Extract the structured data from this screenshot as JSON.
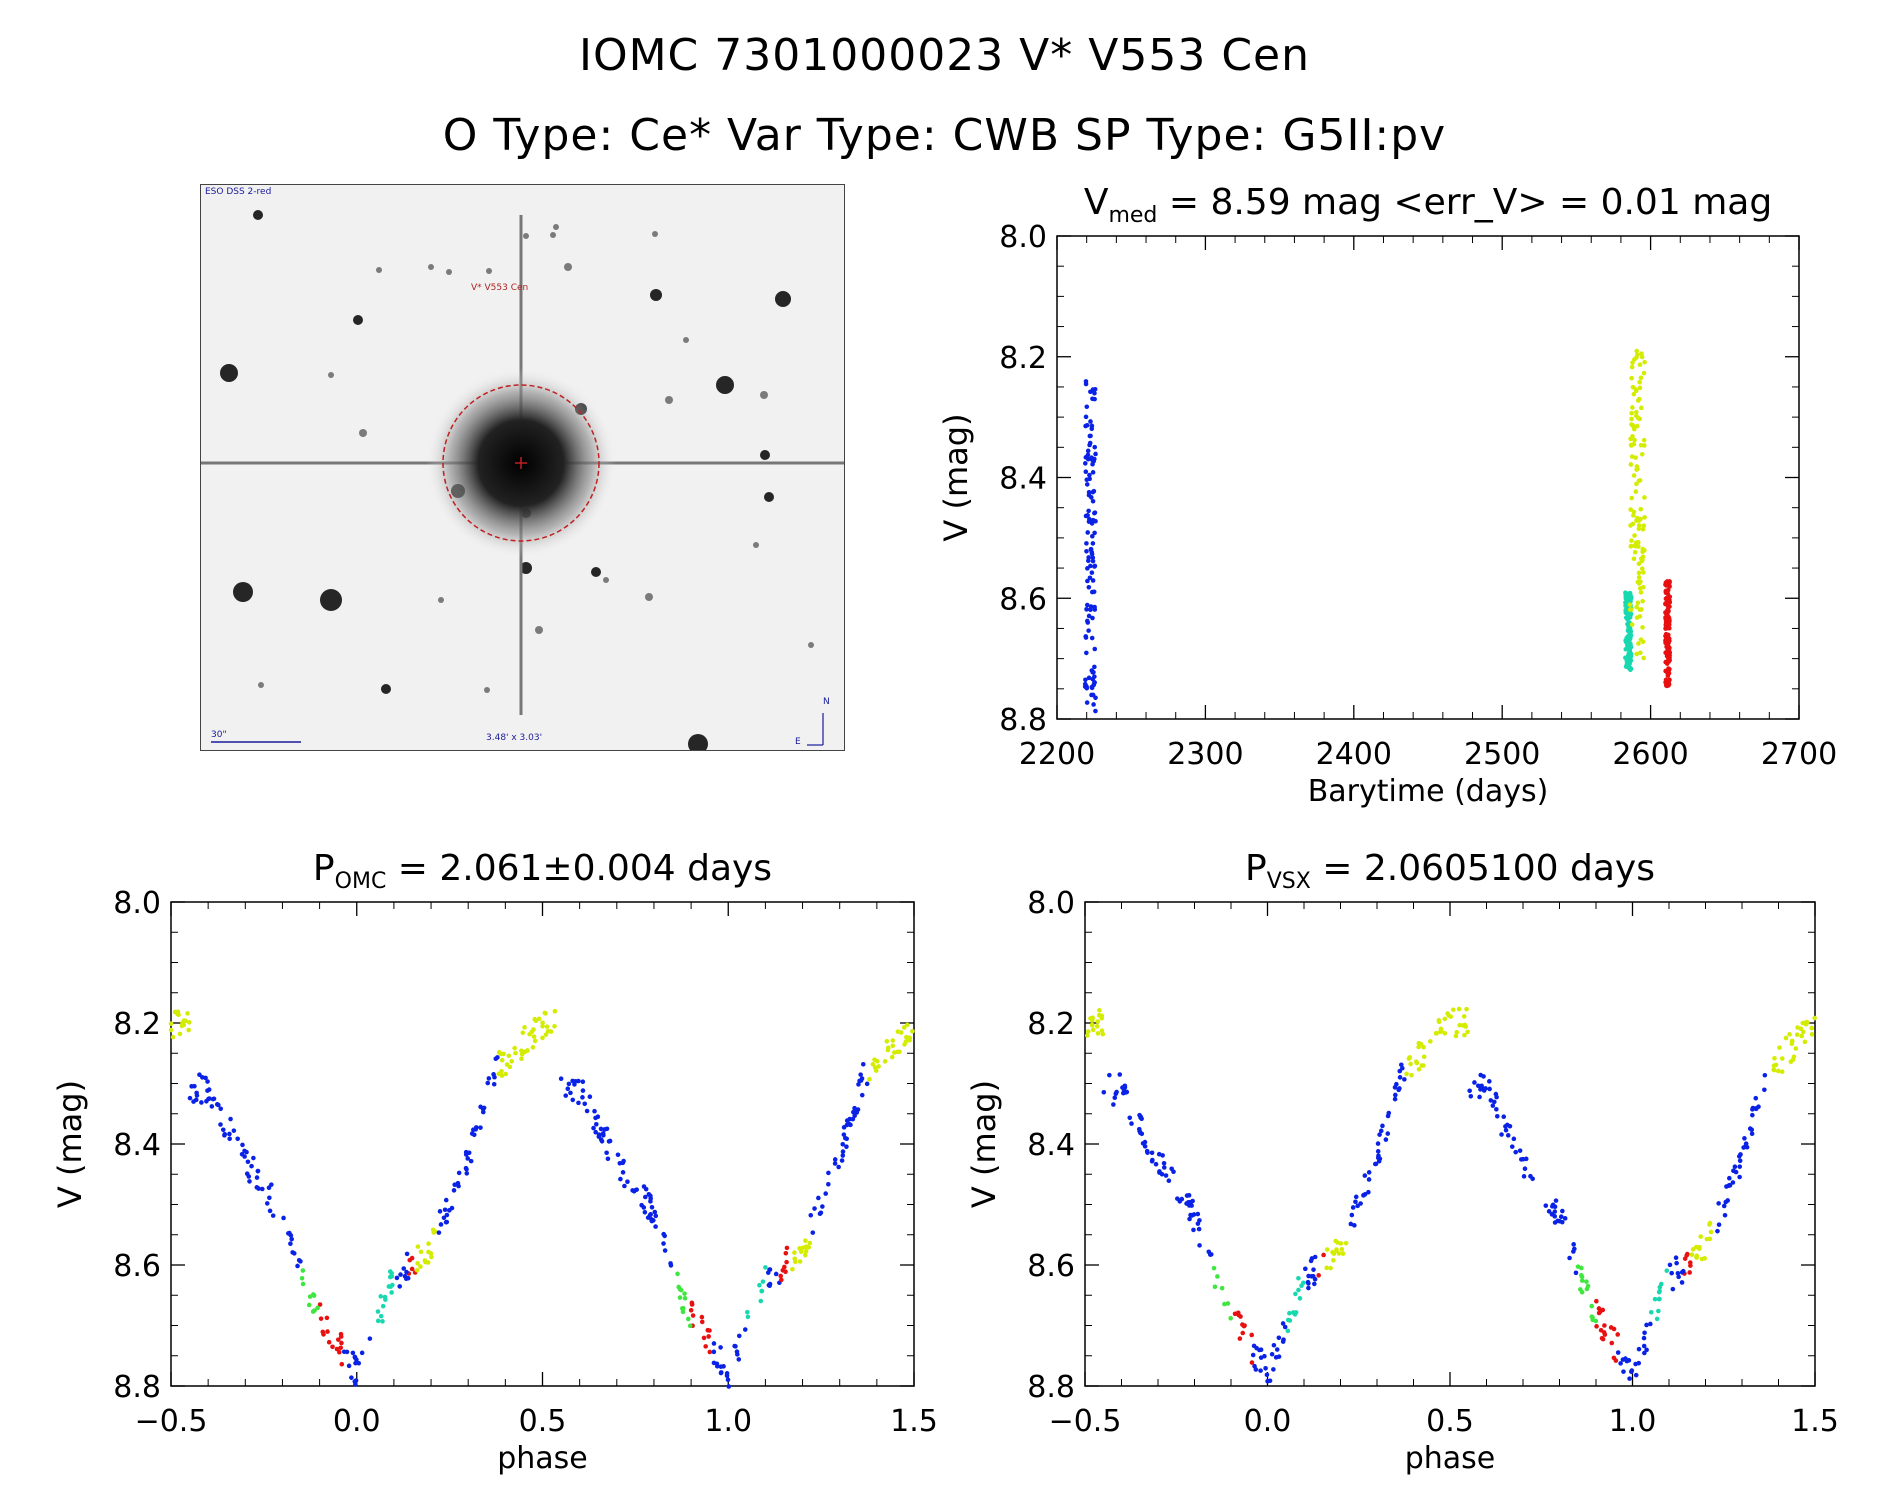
{
  "header": {
    "line1": "IOMC 7301000023   V* V553 Cen",
    "line2": "O Type: Ce*  Var Type: CWB  SP Type: G5II:pv"
  },
  "finding_chart": {
    "source_label": "ESO DSS 2-red",
    "target_label": "V* V553 Cen",
    "scale_label": "30\"",
    "size_label": "3.48' x 3.03'",
    "north": "N",
    "east": "E"
  },
  "colors": {
    "blue": "#0a22e6",
    "yellow": "#d4ec00",
    "red": "#e81010",
    "cyan": "#19d8b0",
    "green": "#40e640"
  },
  "chart_data": [
    {
      "type": "scatter",
      "id": "lightcurve",
      "title": "V_med = 8.59 mag <err_V> = 0.01 mag",
      "title_parts": {
        "main": "V",
        "sub": "med",
        "rest": " = 8.59 mag <err_V> = 0.01 mag"
      },
      "xlabel": "Barytime (days)",
      "ylabel": "V (mag)",
      "xlim": [
        2200,
        2700
      ],
      "ylim": [
        8.8,
        8.0
      ],
      "xticks": [
        "2200",
        "2300",
        "2400",
        "2500",
        "2600",
        "2700"
      ],
      "yticks": [
        "8.0",
        "8.2",
        "8.4",
        "8.6",
        "8.8"
      ],
      "series": [
        {
          "color": "blue",
          "x_range": [
            2219,
            2226
          ],
          "y_range": [
            8.24,
            8.79
          ]
        },
        {
          "color": "cyan",
          "x_range": [
            2583,
            2587
          ],
          "y_range": [
            8.59,
            8.72
          ]
        },
        {
          "color": "yellow",
          "x_range": [
            2586,
            2596
          ],
          "y_range": [
            8.19,
            8.7
          ]
        },
        {
          "color": "red",
          "x_range": [
            2610,
            2613
          ],
          "y_range": [
            8.57,
            8.75
          ]
        }
      ]
    },
    {
      "type": "scatter",
      "id": "phase_omc",
      "title": "P_OMC = 2.061±0.004 days",
      "title_parts": {
        "main": "P",
        "sub": "OMC",
        "rest": " = 2.061±0.004 days"
      },
      "xlabel": "phase",
      "ylabel": "V (mag)",
      "xlim": [
        -0.5,
        1.5
      ],
      "ylim": [
        8.8,
        8.0
      ],
      "xticks": [
        "−0.5",
        "0.0",
        "0.5",
        "1.0",
        "1.5"
      ],
      "yticks": [
        "8.0",
        "8.2",
        "8.4",
        "8.6",
        "8.8"
      ],
      "curve": [
        [
          -0.45,
          8.31
        ],
        [
          -0.4,
          8.31
        ],
        [
          -0.3,
          8.43
        ],
        [
          -0.25,
          8.47
        ],
        [
          -0.2,
          8.52
        ],
        [
          -0.17,
          8.57
        ],
        [
          -0.12,
          8.66
        ],
        [
          -0.05,
          8.73
        ],
        [
          0.0,
          8.78
        ],
        [
          0.05,
          8.7
        ],
        [
          0.1,
          8.62
        ],
        [
          0.15,
          8.6
        ],
        [
          0.2,
          8.57
        ],
        [
          0.25,
          8.5
        ],
        [
          0.3,
          8.42
        ],
        [
          0.33,
          8.36
        ],
        [
          0.37,
          8.28
        ],
        [
          0.42,
          8.25
        ],
        [
          0.5,
          8.2
        ]
      ],
      "phase_colors": [
        {
          "color": "yellow",
          "range": [
            -0.5,
            -0.27
          ]
        },
        {
          "color": "blue",
          "range": [
            -0.45,
            -0.18
          ]
        },
        {
          "color": "green",
          "range": [
            -0.15,
            -0.08
          ]
        },
        {
          "color": "red",
          "range": [
            -0.1,
            -0.04
          ]
        },
        {
          "color": "blue",
          "range": [
            -0.04,
            0.03
          ]
        },
        {
          "color": "cyan",
          "range": [
            0.05,
            0.1
          ]
        },
        {
          "color": "blue",
          "range": [
            0.1,
            0.14
          ]
        },
        {
          "color": "red",
          "range": [
            0.14,
            0.19
          ]
        },
        {
          "color": "yellow",
          "range": [
            0.16,
            0.22
          ]
        },
        {
          "color": "blue",
          "range": [
            0.3,
            0.4
          ]
        },
        {
          "color": "yellow",
          "range": [
            0.38,
            0.5
          ]
        }
      ]
    },
    {
      "type": "scatter",
      "id": "phase_vsx",
      "title": "P_VSX = 2.0605100 days",
      "title_parts": {
        "main": "P",
        "sub": "VSX",
        "rest": " = 2.0605100 days"
      },
      "xlabel": "phase",
      "ylabel": "V (mag)",
      "xlim": [
        -0.5,
        1.5
      ],
      "ylim": [
        8.8,
        8.0
      ],
      "xticks": [
        "−0.5",
        "0.0",
        "0.5",
        "1.0",
        "1.5"
      ],
      "yticks": [
        "8.0",
        "8.2",
        "8.4",
        "8.6",
        "8.8"
      ],
      "same_as": "phase_omc"
    }
  ]
}
